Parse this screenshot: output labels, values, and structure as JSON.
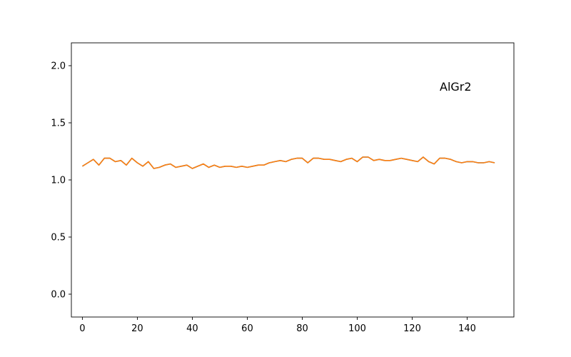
{
  "chart_data": {
    "type": "line",
    "title": "",
    "xlabel": "",
    "ylabel": "",
    "xlim": [
      -4,
      157
    ],
    "ylim": [
      -0.2,
      2.2
    ],
    "xticks": [
      0,
      20,
      40,
      60,
      80,
      100,
      120,
      140
    ],
    "xtick_labels": [
      "0",
      "20",
      "40",
      "60",
      "80",
      "100",
      "120",
      "140"
    ],
    "yticks": [
      0.0,
      0.5,
      1.0,
      1.5,
      2.0
    ],
    "ytick_labels": [
      "0.0",
      "0.5",
      "1.0",
      "1.5",
      "2.0"
    ],
    "grid": false,
    "annotation": {
      "text": "AlGr2",
      "x": 130,
      "y": 1.82
    },
    "series": [
      {
        "color": "#1f77b4",
        "x": [
          0,
          2,
          4,
          6,
          8,
          10,
          12,
          14,
          16,
          18,
          20,
          22,
          24,
          26,
          28,
          30,
          32,
          34,
          36,
          38,
          40,
          42,
          44,
          46,
          48,
          50,
          52,
          54,
          56,
          58,
          60,
          62,
          64,
          66,
          68,
          70,
          72,
          74,
          76,
          78,
          80,
          82,
          84,
          86,
          88,
          90,
          92,
          94,
          96,
          98,
          100,
          102,
          104,
          106,
          108,
          110,
          112,
          114,
          116,
          118,
          120,
          122,
          124,
          126,
          128,
          130,
          132,
          134,
          136,
          138,
          140,
          142,
          144,
          146,
          148,
          150
        ],
        "values": [
          1.12,
          1.15,
          1.18,
          1.13,
          1.19,
          1.19,
          1.16,
          1.17,
          1.13,
          1.19,
          1.15,
          1.12,
          1.16,
          1.1,
          1.11,
          1.13,
          1.14,
          1.11,
          1.12,
          1.13,
          1.1,
          1.12,
          1.14,
          1.11,
          1.13,
          1.11,
          1.12,
          1.12,
          1.11,
          1.12,
          1.11,
          1.12,
          1.13,
          1.13,
          1.15,
          1.16,
          1.17,
          1.16,
          1.18,
          1.19,
          1.19,
          1.15,
          1.19,
          1.19,
          1.18,
          1.18,
          1.17,
          1.16,
          1.18,
          1.19,
          1.16,
          1.2,
          1.2,
          1.17,
          1.18,
          1.17,
          1.17,
          1.18,
          1.19,
          1.18,
          1.17,
          1.16,
          1.2,
          1.16,
          1.14,
          1.19,
          1.19,
          1.18,
          1.16,
          1.15,
          1.16,
          1.16,
          1.15,
          1.15,
          1.16,
          1.15
        ]
      },
      {
        "color": "#ff7f0e",
        "x": [
          0,
          2,
          4,
          6,
          8,
          10,
          12,
          14,
          16,
          18,
          20,
          22,
          24,
          26,
          28,
          30,
          32,
          34,
          36,
          38,
          40,
          42,
          44,
          46,
          48,
          50,
          52,
          54,
          56,
          58,
          60,
          62,
          64,
          66,
          68,
          70,
          72,
          74,
          76,
          78,
          80,
          82,
          84,
          86,
          88,
          90,
          92,
          94,
          96,
          98,
          100,
          102,
          104,
          106,
          108,
          110,
          112,
          114,
          116,
          118,
          120,
          122,
          124,
          126,
          128,
          130,
          132,
          134,
          136,
          138,
          140,
          142,
          144,
          146,
          148,
          150
        ],
        "values": [
          1.12,
          1.15,
          1.18,
          1.13,
          1.19,
          1.19,
          1.16,
          1.17,
          1.13,
          1.19,
          1.15,
          1.12,
          1.16,
          1.1,
          1.11,
          1.13,
          1.14,
          1.11,
          1.12,
          1.13,
          1.1,
          1.12,
          1.14,
          1.11,
          1.13,
          1.11,
          1.12,
          1.12,
          1.11,
          1.12,
          1.11,
          1.12,
          1.13,
          1.13,
          1.15,
          1.16,
          1.17,
          1.16,
          1.18,
          1.19,
          1.19,
          1.15,
          1.19,
          1.19,
          1.18,
          1.18,
          1.17,
          1.16,
          1.18,
          1.19,
          1.16,
          1.2,
          1.2,
          1.17,
          1.18,
          1.17,
          1.17,
          1.18,
          1.19,
          1.18,
          1.17,
          1.16,
          1.2,
          1.16,
          1.14,
          1.19,
          1.19,
          1.18,
          1.16,
          1.15,
          1.16,
          1.16,
          1.15,
          1.15,
          1.16,
          1.15
        ]
      }
    ]
  }
}
